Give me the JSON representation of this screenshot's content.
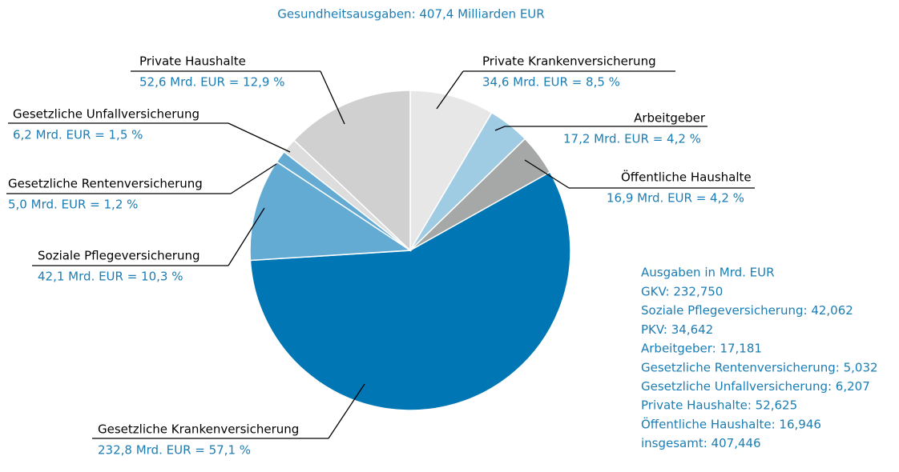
{
  "chart_data": {
    "type": "pie",
    "title": "Gesundheitsausgaben: 407,4 Milliarden EUR",
    "categories": [
      "Private Krankenversicherung",
      "Arbeitgeber",
      "Öffentliche Haushalte",
      "Gesetzliche Krankenversicherung",
      "Soziale Pflegeversicherung",
      "Gesetzliche Rentenversicherung",
      "Gesetzliche Unfallversicherung",
      "Private Haushalte"
    ],
    "values": [
      34.6,
      17.2,
      16.9,
      232.8,
      42.1,
      5.0,
      6.2,
      52.6
    ],
    "value_labels": [
      "34,6 Mrd. EUR = 8,5 %",
      "17,2  Mrd. EUR = 4,2 %",
      "16,9 Mrd. EUR = 4,2 %",
      "232,8 Mrd. EUR = 57,1 %",
      "42,1 Mrd. EUR = 10,3 %",
      "5,0 Mrd. EUR = 1,2 %",
      "6,2 Mrd. EUR = 1,5 %",
      "52,6 Mrd. EUR = 12,9 %"
    ],
    "colors": [
      "#e6e7e6",
      "#9fcbe3",
      "#a6a8a8",
      "#0077b4",
      "#64abd3",
      "#64abd3",
      "#dcdddc",
      "#cfd0cf"
    ],
    "notes": {
      "title": "Ausgaben in Mrd. EUR",
      "items": [
        "GKV: 232,750",
        "Soziale Pflegeversicherung: 42,062",
        "PKV: 34,642",
        "Arbeitgeber: 17,181",
        "Gesetzliche Rentenversicherung: 5,032",
        "Gesetzliche Unfallversicherung: 6,207",
        "Private Haushalte: 52,625",
        "Öffentliche Haushalte: 16,946",
        "insgesamt: 407,446"
      ]
    }
  }
}
